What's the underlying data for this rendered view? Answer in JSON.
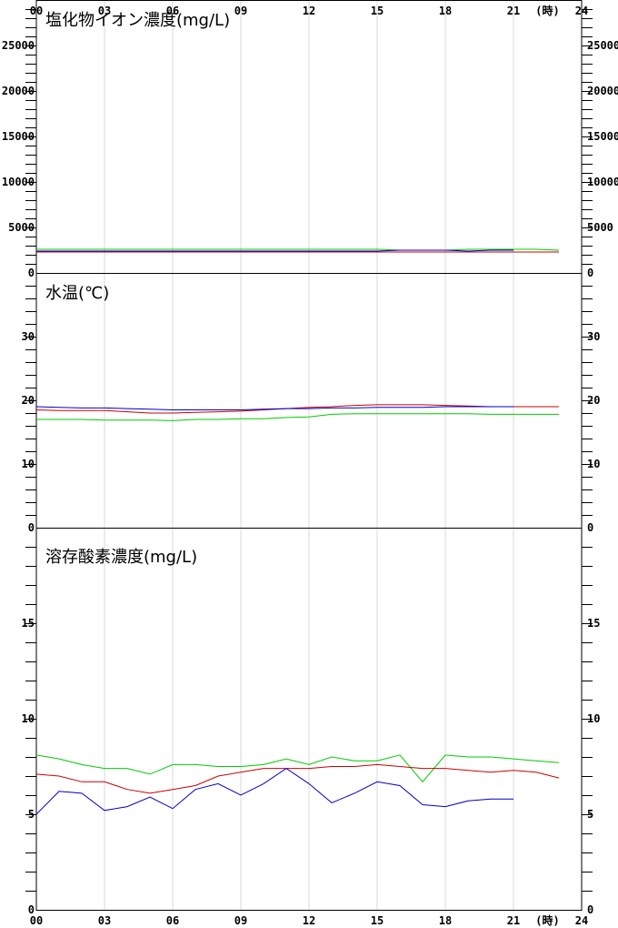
{
  "hour_axis": {
    "labels": [
      "00",
      "03",
      "06",
      "09",
      "12",
      "15",
      "18",
      "21",
      "24"
    ],
    "unit": "(時)"
  },
  "chart_data": [
    {
      "type": "line",
      "title": "塩化物イオン濃度(mg/L)",
      "x": [
        0,
        1,
        2,
        3,
        4,
        5,
        6,
        7,
        8,
        9,
        10,
        11,
        12,
        13,
        14,
        15,
        16,
        17,
        18,
        19,
        20,
        21,
        22,
        23
      ],
      "ylim": [
        0,
        30000
      ],
      "yticks": [
        0,
        5000,
        10000,
        15000,
        20000,
        25000
      ],
      "grid": true,
      "series": [
        {
          "color": "#00cc00",
          "values": [
            2600,
            2600,
            2600,
            2600,
            2600,
            2600,
            2600,
            2600,
            2600,
            2600,
            2600,
            2600,
            2600,
            2600,
            2600,
            2600,
            2500,
            2500,
            2500,
            2600,
            2600,
            2600,
            2600,
            2500
          ]
        },
        {
          "color": "#cc0000",
          "values": [
            2300,
            2300,
            2300,
            2300,
            2300,
            2300,
            2300,
            2300,
            2300,
            2300,
            2300,
            2300,
            2300,
            2300,
            2300,
            2300,
            2300,
            2300,
            2300,
            2300,
            2300,
            2300,
            2300,
            2300
          ]
        },
        {
          "color": "#0000cc",
          "values": [
            2400,
            2400,
            2400,
            2400,
            2400,
            2400,
            2400,
            2400,
            2400,
            2400,
            2400,
            2400,
            2400,
            2400,
            2400,
            2400,
            2500,
            2500,
            2500,
            2400,
            2500,
            2500,
            null,
            null
          ]
        }
      ]
    },
    {
      "type": "line",
      "title": "水温(℃)",
      "x": [
        0,
        1,
        2,
        3,
        4,
        5,
        6,
        7,
        8,
        9,
        10,
        11,
        12,
        13,
        14,
        15,
        16,
        17,
        18,
        19,
        20,
        21,
        22,
        23
      ],
      "ylim": [
        0,
        40
      ],
      "yticks": [
        0,
        10,
        20,
        30
      ],
      "grid": true,
      "series": [
        {
          "color": "#00cc00",
          "values": [
            17.0,
            17.0,
            17.0,
            16.9,
            16.9,
            16.9,
            16.8,
            17.0,
            17.0,
            17.1,
            17.1,
            17.3,
            17.4,
            17.8,
            17.9,
            17.9,
            17.9,
            17.9,
            17.9,
            17.9,
            17.8,
            17.8,
            17.8,
            17.8
          ]
        },
        {
          "color": "#cc0000",
          "values": [
            18.5,
            18.4,
            18.4,
            18.4,
            18.2,
            18.0,
            18.0,
            18.1,
            18.2,
            18.3,
            18.5,
            18.7,
            18.9,
            19.0,
            19.2,
            19.3,
            19.3,
            19.3,
            19.2,
            19.1,
            19.0,
            19.0,
            19.0,
            19.0
          ]
        },
        {
          "color": "#0000cc",
          "values": [
            19.0,
            18.9,
            18.8,
            18.8,
            18.7,
            18.6,
            18.5,
            18.5,
            18.5,
            18.5,
            18.6,
            18.7,
            18.7,
            18.8,
            18.8,
            18.9,
            18.9,
            18.9,
            19.0,
            19.0,
            19.0,
            19.0,
            null,
            null
          ]
        }
      ]
    },
    {
      "type": "line",
      "title": "溶存酸素濃度(mg/L)",
      "x": [
        0,
        1,
        2,
        3,
        4,
        5,
        6,
        7,
        8,
        9,
        10,
        11,
        12,
        13,
        14,
        15,
        16,
        17,
        18,
        19,
        20,
        21,
        22,
        23
      ],
      "ylim": [
        0,
        20
      ],
      "yticks": [
        0,
        5,
        10,
        15
      ],
      "grid": true,
      "series": [
        {
          "color": "#00cc00",
          "values": [
            8.1,
            7.9,
            7.6,
            7.4,
            7.4,
            7.1,
            7.6,
            7.6,
            7.5,
            7.5,
            7.6,
            7.9,
            7.6,
            8.0,
            7.8,
            7.8,
            8.1,
            6.7,
            8.1,
            8.0,
            8.0,
            7.9,
            7.8,
            7.7
          ]
        },
        {
          "color": "#cc0000",
          "values": [
            7.1,
            7.0,
            6.7,
            6.7,
            6.3,
            6.1,
            6.3,
            6.5,
            7.0,
            7.2,
            7.4,
            7.4,
            7.4,
            7.5,
            7.5,
            7.6,
            7.5,
            7.4,
            7.4,
            7.3,
            7.2,
            7.3,
            7.2,
            6.9
          ]
        },
        {
          "color": "#0000cc",
          "values": [
            5.0,
            6.2,
            6.1,
            5.2,
            5.4,
            5.9,
            5.3,
            6.3,
            6.6,
            6.0,
            6.6,
            7.4,
            6.6,
            5.6,
            6.1,
            6.7,
            6.5,
            5.5,
            5.4,
            5.7,
            5.8,
            5.8,
            null,
            null
          ]
        }
      ]
    }
  ]
}
